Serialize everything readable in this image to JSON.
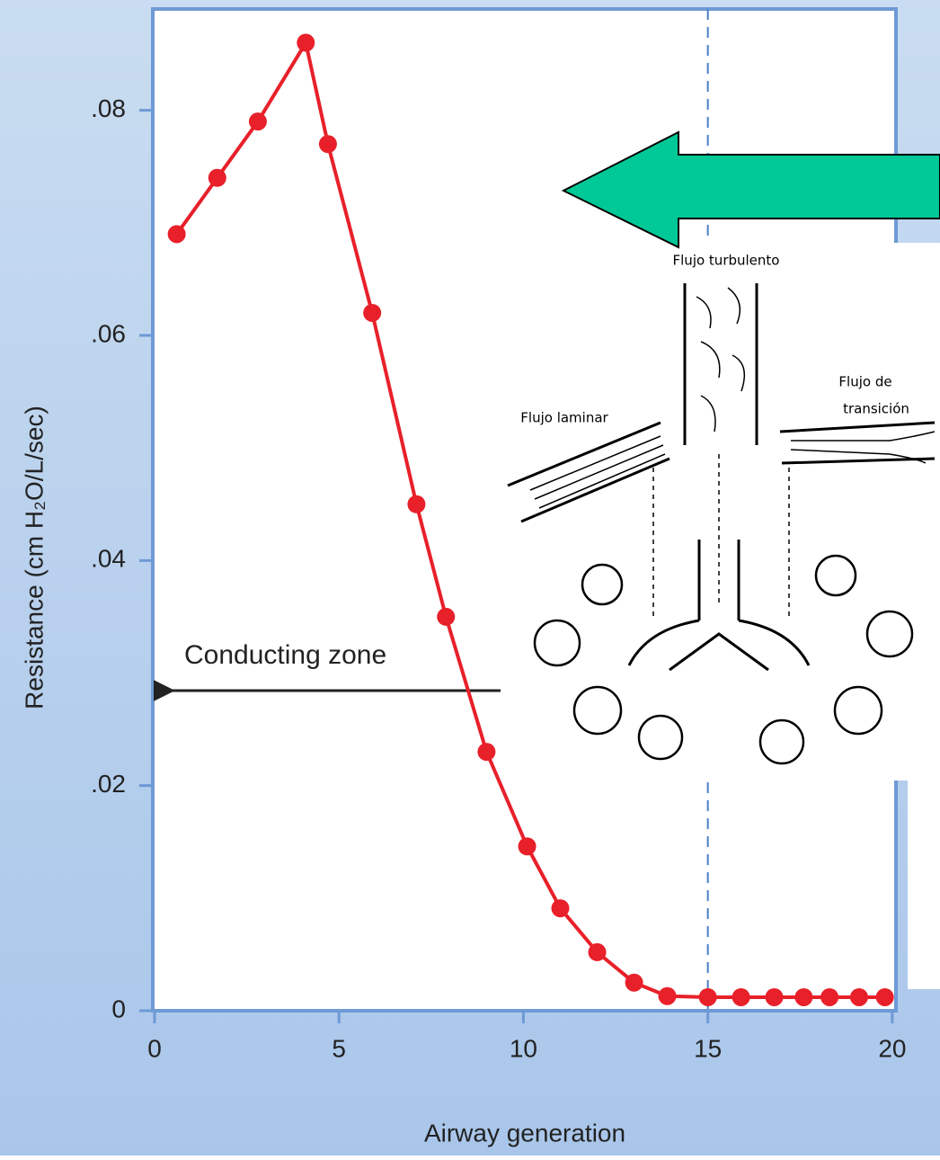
{
  "chart_data": {
    "type": "line",
    "x_label": "Airway generation",
    "y_label": "Resistance (cm H₂O/L/sec)",
    "x": [
      0.6,
      1.7,
      2.8,
      4.1,
      4.7,
      5.9,
      7.1,
      7.9,
      9.0,
      10.1,
      11.0,
      12.0,
      13.0,
      13.9,
      15.0,
      15.9,
      16.8,
      17.6,
      18.3,
      19.1,
      19.8
    ],
    "series": [
      {
        "color": "#e8202a",
        "values": [
          0.069,
          0.074,
          0.079,
          0.086,
          0.077,
          0.062,
          0.045,
          0.035,
          0.023,
          0.0146,
          0.0091,
          0.0052,
          0.0025,
          0.0013,
          0.0012,
          0.0012,
          0.0012,
          0.0012,
          0.0012,
          0.0012,
          0.0012
        ]
      }
    ],
    "xlim": [
      0,
      20.1
    ],
    "ylim": [
      0,
      0.089
    ],
    "xticks": [
      0,
      5,
      10,
      15,
      20
    ],
    "yticks": [
      0,
      {
        "value": 0.02,
        "label": ".02"
      },
      {
        "value": 0.04,
        "label": ".04"
      },
      {
        "value": 0.06,
        "label": ".06"
      },
      {
        "value": 0.08,
        "label": ".08"
      }
    ],
    "reference_x": 15,
    "annotation": "Conducting zone"
  },
  "inset": {
    "labels": [
      "Flujo turbulento",
      "Flujo laminar",
      "Flujo de",
      "transición"
    ]
  }
}
